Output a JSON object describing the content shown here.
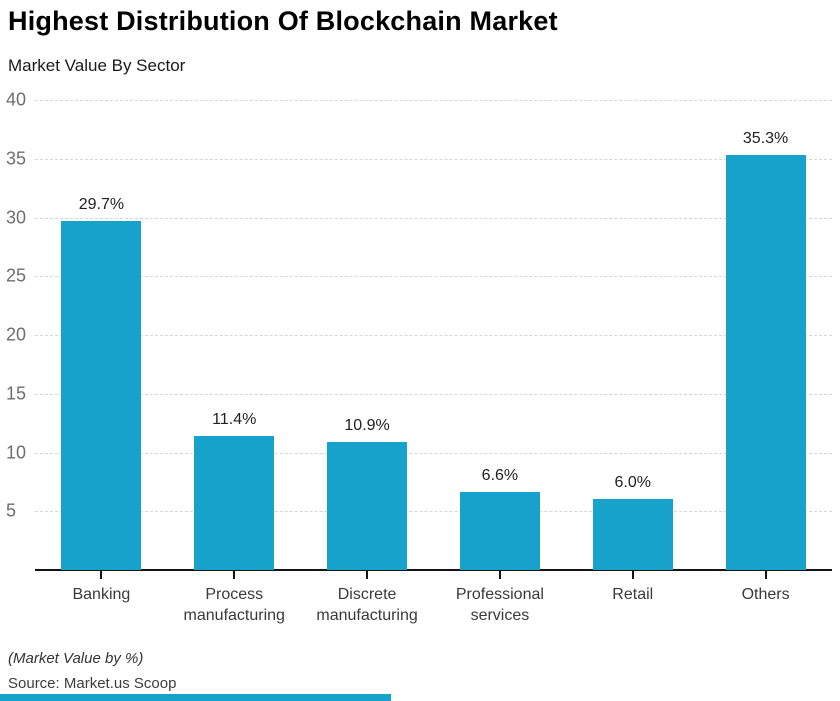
{
  "header": {
    "title": "Highest Distribution Of Blockchain Market",
    "subtitle": "Market Value By Sector"
  },
  "chart_data": {
    "type": "bar",
    "title": "Highest Distribution Of Blockchain Market",
    "subtitle": "Market Value By Sector",
    "categories": [
      "Banking",
      "Process manufacturing",
      "Discrete manufacturing",
      "Professional services",
      "Retail",
      "Others"
    ],
    "values": [
      29.7,
      11.4,
      10.9,
      6.6,
      6.0,
      35.3
    ],
    "value_labels": [
      "29.7%",
      "11.4%",
      "10.9%",
      "6.6%",
      "6.0%",
      "35.3%"
    ],
    "unit": "%",
    "ylim": [
      0,
      40
    ],
    "yticks": [
      5,
      10,
      15,
      20,
      25,
      30,
      35,
      40
    ],
    "grid": "horizontal-dashed",
    "legend": "none",
    "bar_color": "#17a2cb"
  },
  "footer": {
    "note": "(Market Value by %)",
    "source": "Source: Market.us Scoop"
  },
  "colors": {
    "accent": "#17a2cb",
    "axis": "#141414",
    "gridline": "#d6d6d6",
    "tick_label": "#6e6e6e"
  }
}
